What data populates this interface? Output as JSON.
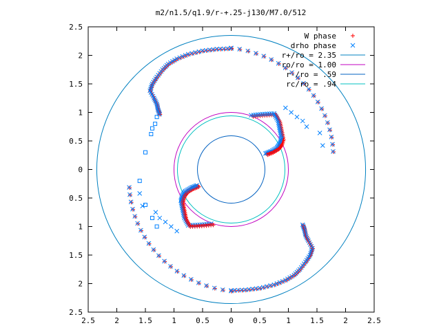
{
  "chart_data": {
    "type": "scatter",
    "title": "m2/n1.5/q1.9/r-+.25-j130/M7.0/512",
    "xlim": [
      -2.5,
      2.5
    ],
    "ylim": [
      -2.5,
      2.5
    ],
    "x_ticks": [
      -2.5,
      -2,
      -1.5,
      -1,
      -0.5,
      0,
      0.5,
      1,
      1.5,
      2,
      2.5
    ],
    "y_ticks": [
      2.5,
      2,
      1.5,
      1,
      0.5,
      0,
      -0.5,
      -1,
      -1.5,
      -2,
      -2.5
    ],
    "x_tick_labels": [
      "2.5",
      "2",
      "1.5",
      "1",
      "0.5",
      "0",
      "0.5",
      "1",
      "1.5",
      "2",
      "2.5"
    ],
    "y_tick_labels": [
      "2.5",
      "2",
      "1.5",
      "1",
      "0.5",
      "0",
      "0.5",
      "1",
      "1.5",
      "2",
      "2.5"
    ],
    "grid": false,
    "legend_position": "top-right",
    "series": [
      {
        "name": "W phase",
        "marker": "plus",
        "color": "#ff0000"
      },
      {
        "name": "drho phase",
        "marker": "cross",
        "color": "#0080ff"
      }
    ],
    "circles": [
      {
        "name": "r+/ro = 2.35",
        "r": 2.35,
        "color": "#0080c0"
      },
      {
        "name": "ro/ro = 1.00",
        "r": 1.0,
        "color": "#c000c0"
      },
      {
        "name": "r-/ro = .59",
        "r": 0.59,
        "color": "#0060c0"
      },
      {
        "name": "rc/ro = .94",
        "r": 0.94,
        "color": "#00c0c0"
      }
    ],
    "arm_outer": [
      [
        0.0,
        2.12
      ],
      [
        -0.25,
        2.11
      ],
      [
        -0.5,
        2.08
      ],
      [
        -0.75,
        2.02
      ],
      [
        -0.95,
        1.94
      ],
      [
        -1.1,
        1.85
      ],
      [
        -1.2,
        1.75
      ],
      [
        -1.3,
        1.62
      ],
      [
        -1.38,
        1.5
      ],
      [
        -1.42,
        1.38
      ],
      [
        -1.35,
        1.25
      ],
      [
        -1.3,
        1.15
      ],
      [
        -1.28,
        1.05
      ],
      [
        -1.25,
        0.97
      ]
    ],
    "arm_inner": [
      [
        0.35,
        0.95
      ],
      [
        0.55,
        0.97
      ],
      [
        0.75,
        0.98
      ],
      [
        0.82,
        0.85
      ],
      [
        0.85,
        0.7
      ],
      [
        0.88,
        0.55
      ],
      [
        0.85,
        0.45
      ],
      [
        0.8,
        0.38
      ],
      [
        0.7,
        0.32
      ],
      [
        0.6,
        0.28
      ]
    ],
    "scatter_drho": [
      [
        0.95,
        1.08
      ],
      [
        1.05,
        1.0
      ],
      [
        1.15,
        0.92
      ],
      [
        1.25,
        0.85
      ],
      [
        1.32,
        0.75
      ],
      [
        1.55,
        0.64
      ],
      [
        1.6,
        0.42
      ]
    ],
    "square_markers": [
      [
        -1.3,
        0.92
      ],
      [
        -1.33,
        0.8
      ],
      [
        -1.38,
        0.72
      ],
      [
        -1.4,
        0.62
      ],
      [
        -1.5,
        0.3
      ],
      [
        -1.6,
        -0.2
      ],
      [
        -1.5,
        -0.62
      ],
      [
        -1.38,
        -0.85
      ],
      [
        -1.3,
        -1.0
      ]
    ]
  }
}
